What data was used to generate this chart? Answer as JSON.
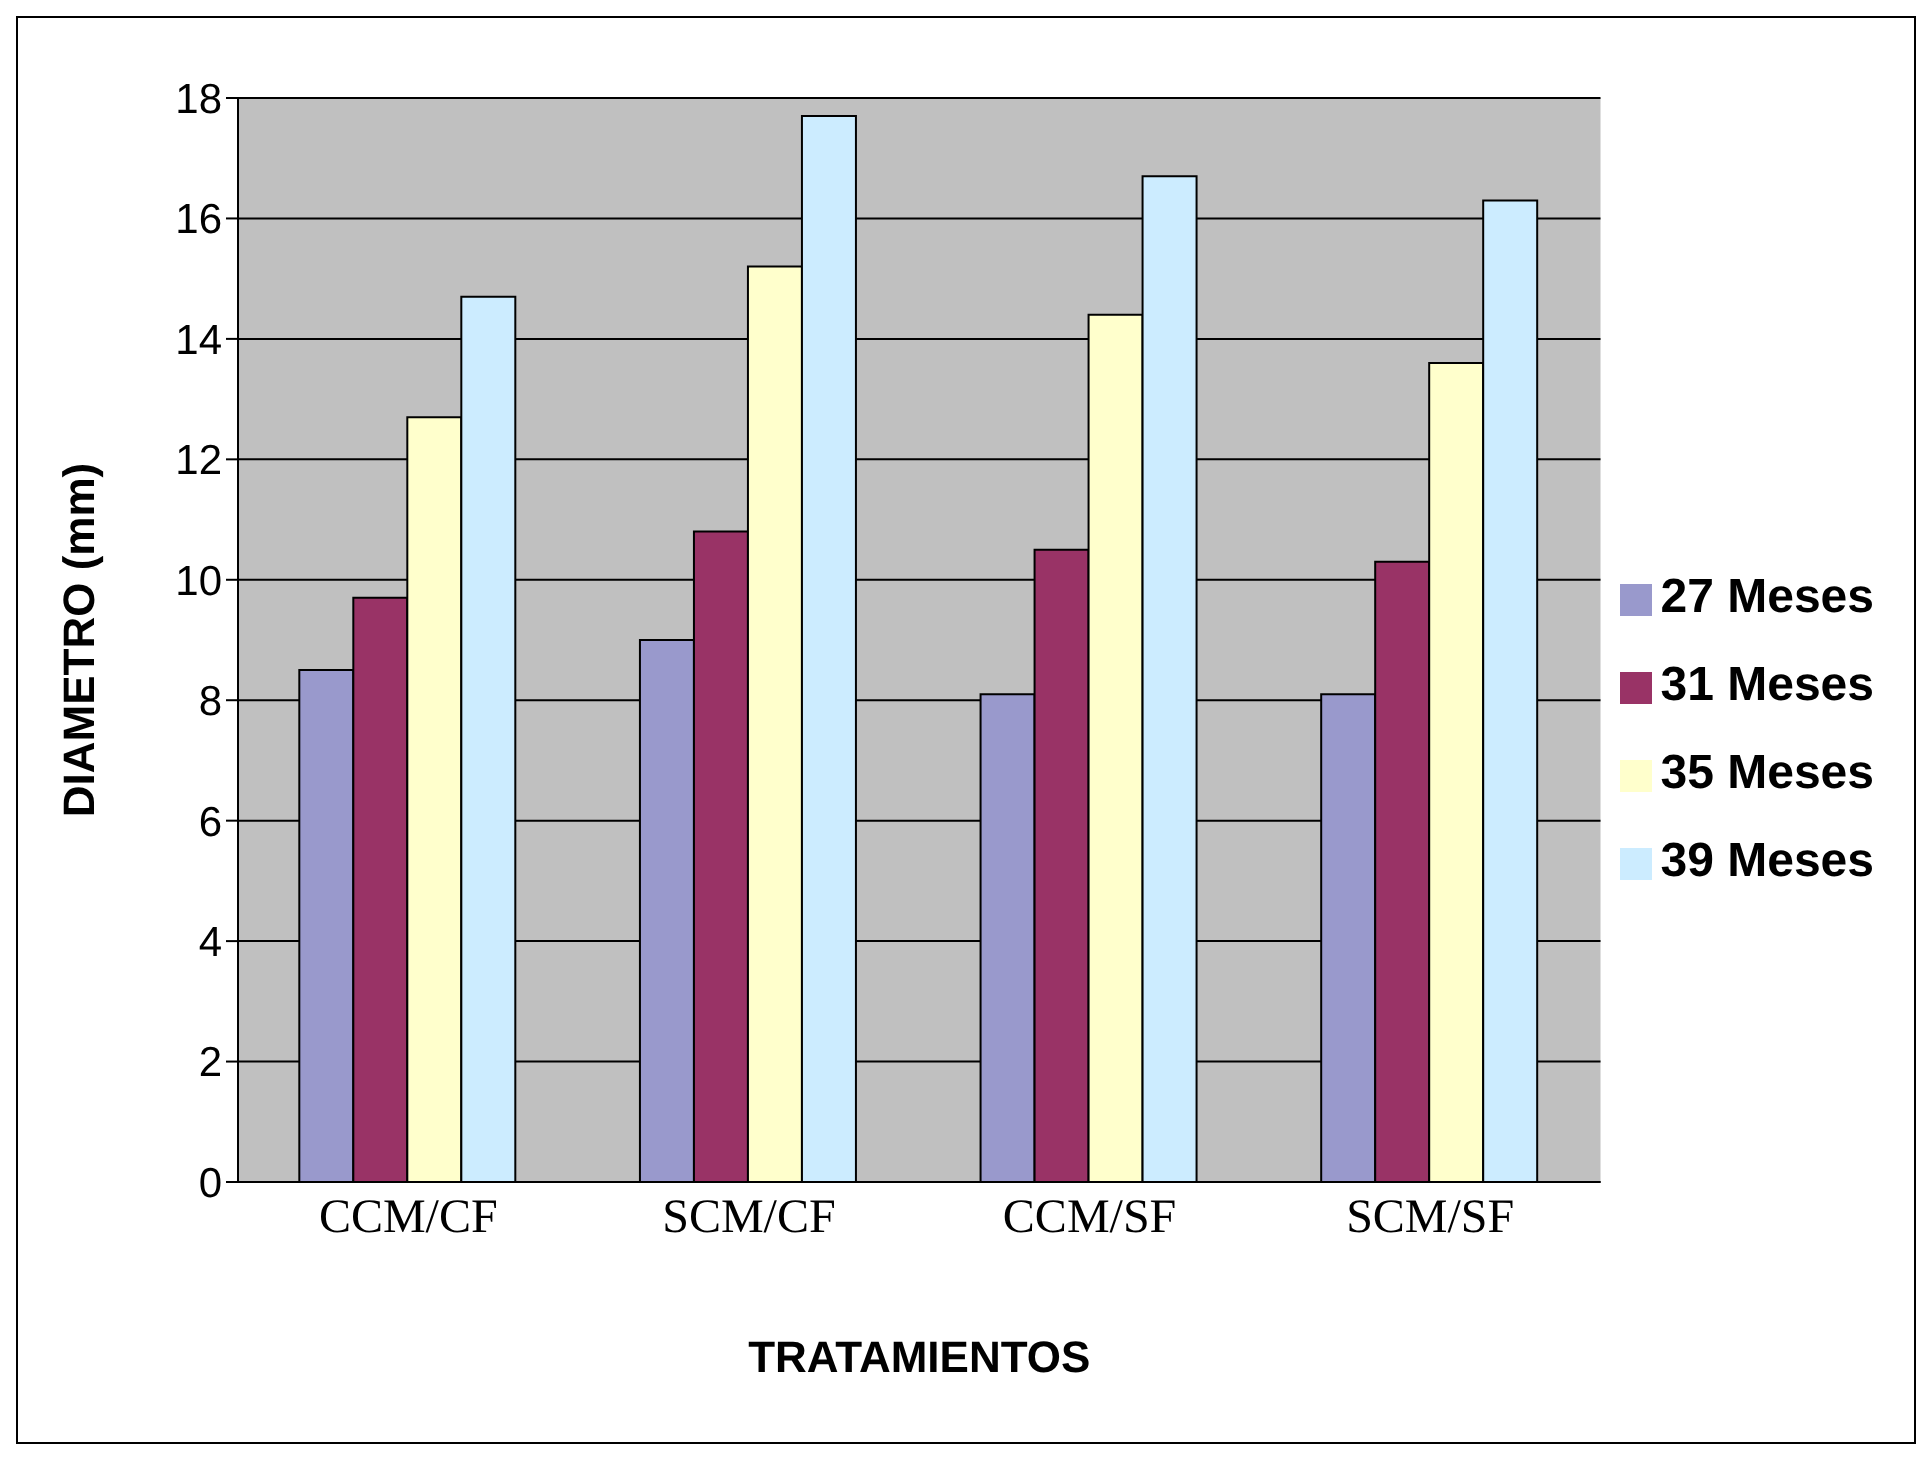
{
  "chart_data": {
    "type": "bar",
    "xlabel": "TRATAMIENTOS",
    "ylabel": "DIAMETRO (mm)",
    "categories": [
      "CCM/CF",
      "SCM/CF",
      "CCM/SF",
      "SCM/SF"
    ],
    "series": [
      {
        "name": "27 Meses",
        "color": "#9999cc",
        "values": [
          8.5,
          9.0,
          8.1,
          8.1
        ]
      },
      {
        "name": "31 Meses",
        "color": "#993366",
        "values": [
          9.7,
          10.8,
          10.5,
          10.3
        ]
      },
      {
        "name": "35 Meses",
        "color": "#ffffcc",
        "values": [
          12.7,
          15.2,
          14.4,
          13.6
        ]
      },
      {
        "name": "39 Meses",
        "color": "#ccecff",
        "values": [
          14.7,
          17.7,
          16.7,
          16.3
        ]
      }
    ],
    "ylim": [
      0,
      18
    ],
    "yticks": [
      0,
      2,
      4,
      6,
      8,
      10,
      12,
      14,
      16,
      18
    ],
    "grid": "y",
    "legend": "right"
  }
}
